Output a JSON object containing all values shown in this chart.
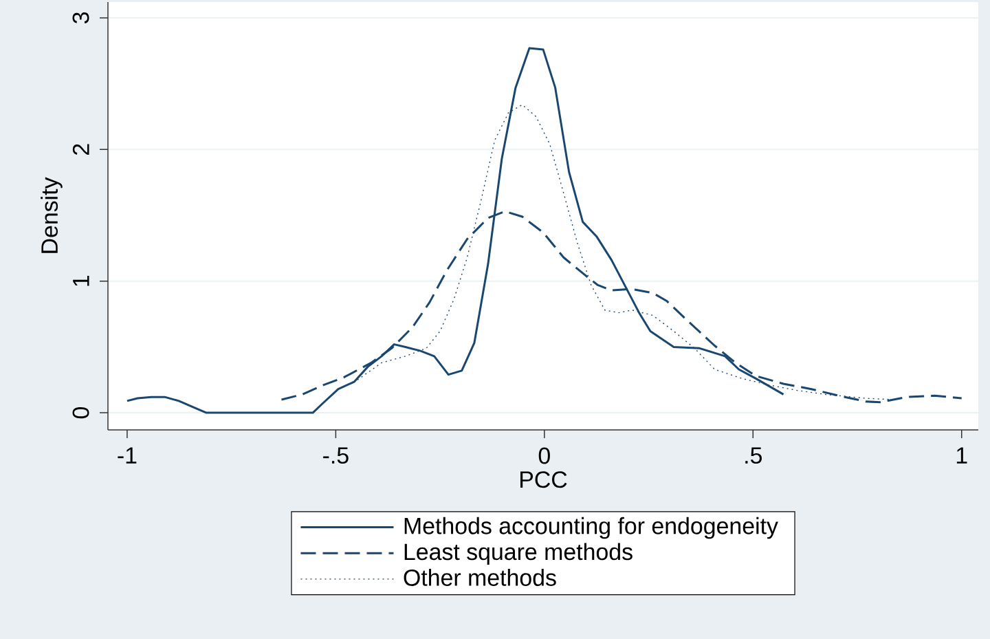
{
  "chart_data": {
    "type": "line",
    "xlabel": "PCC",
    "ylabel": "Density",
    "xlim": [
      -1.046,
      1.04
    ],
    "ylim": [
      -0.13,
      3.12
    ],
    "xticks": [
      {
        "value": -1,
        "label": "-1"
      },
      {
        "value": -0.5,
        "label": "-.5"
      },
      {
        "value": 0,
        "label": "0"
      },
      {
        "value": 0.5,
        "label": ".5"
      },
      {
        "value": 1,
        "label": "1"
      }
    ],
    "yticks": [
      0,
      1,
      2,
      3
    ],
    "grid": "y",
    "legend": "bottom",
    "marker": "none",
    "series": [
      {
        "name": "Methods accounting for endogeneity",
        "color": "#1a476f",
        "line_style": "solid",
        "x": [
          -1.0,
          -0.975,
          -0.942,
          -0.91,
          -0.876,
          -0.84,
          -0.81,
          -0.555,
          -0.53,
          -0.494,
          -0.456,
          -0.423,
          -0.39,
          -0.36,
          -0.333,
          -0.297,
          -0.264,
          -0.23,
          -0.198,
          -0.168,
          -0.135,
          -0.102,
          -0.069,
          -0.036,
          -0.003,
          0.026,
          0.059,
          0.092,
          0.125,
          0.161,
          0.227,
          0.254,
          0.31,
          0.372,
          0.433,
          0.466,
          0.507,
          0.573
        ],
        "values": [
          0.09,
          0.11,
          0.12,
          0.12,
          0.09,
          0.04,
          0,
          0,
          0.075,
          0.18,
          0.235,
          0.35,
          0.43,
          0.52,
          0.5,
          0.47,
          0.43,
          0.29,
          0.32,
          0.53,
          1.13,
          1.93,
          2.47,
          2.77,
          2.76,
          2.47,
          1.83,
          1.45,
          1.34,
          1.16,
          0.76,
          0.62,
          0.5,
          0.49,
          0.43,
          0.33,
          0.26,
          0.14
        ]
      },
      {
        "name": "Least square methods",
        "color": "#1a476f",
        "line_style": "dashed",
        "x": [
          -0.63,
          -0.58,
          -0.53,
          -0.48,
          -0.415,
          -0.366,
          -0.316,
          -0.275,
          -0.234,
          -0.185,
          -0.135,
          -0.094,
          -0.053,
          -0.003,
          0.046,
          0.096,
          0.128,
          0.161,
          0.21,
          0.26,
          0.293,
          0.343,
          0.408,
          0.458,
          0.507,
          0.573,
          0.64,
          0.705,
          0.77,
          0.804,
          0.87,
          0.935,
          1.0
        ],
        "values": [
          0.1,
          0.14,
          0.21,
          0.27,
          0.38,
          0.49,
          0.65,
          0.84,
          1.08,
          1.32,
          1.48,
          1.53,
          1.49,
          1.37,
          1.18,
          1.05,
          0.97,
          0.93,
          0.94,
          0.91,
          0.85,
          0.7,
          0.51,
          0.38,
          0.28,
          0.22,
          0.18,
          0.13,
          0.086,
          0.08,
          0.12,
          0.13,
          0.11
        ]
      },
      {
        "name": "Other methods",
        "color": "#1a476f",
        "line_style": "dotted",
        "x": [
          -0.448,
          -0.39,
          -0.333,
          -0.283,
          -0.25,
          -0.217,
          -0.185,
          -0.152,
          -0.119,
          -0.086,
          -0.053,
          -0.02,
          0.013,
          0.046,
          0.079,
          0.112,
          0.145,
          0.178,
          0.21,
          0.26,
          0.31,
          0.36,
          0.408,
          0.474,
          0.54,
          0.606,
          0.672,
          0.77,
          0.837
        ],
        "values": [
          0.25,
          0.38,
          0.43,
          0.49,
          0.62,
          0.86,
          1.18,
          1.61,
          2.07,
          2.28,
          2.34,
          2.25,
          2.04,
          1.67,
          1.29,
          0.97,
          0.78,
          0.76,
          0.78,
          0.74,
          0.62,
          0.49,
          0.33,
          0.26,
          0.21,
          0.17,
          0.14,
          0.11,
          0.1
        ]
      }
    ]
  }
}
